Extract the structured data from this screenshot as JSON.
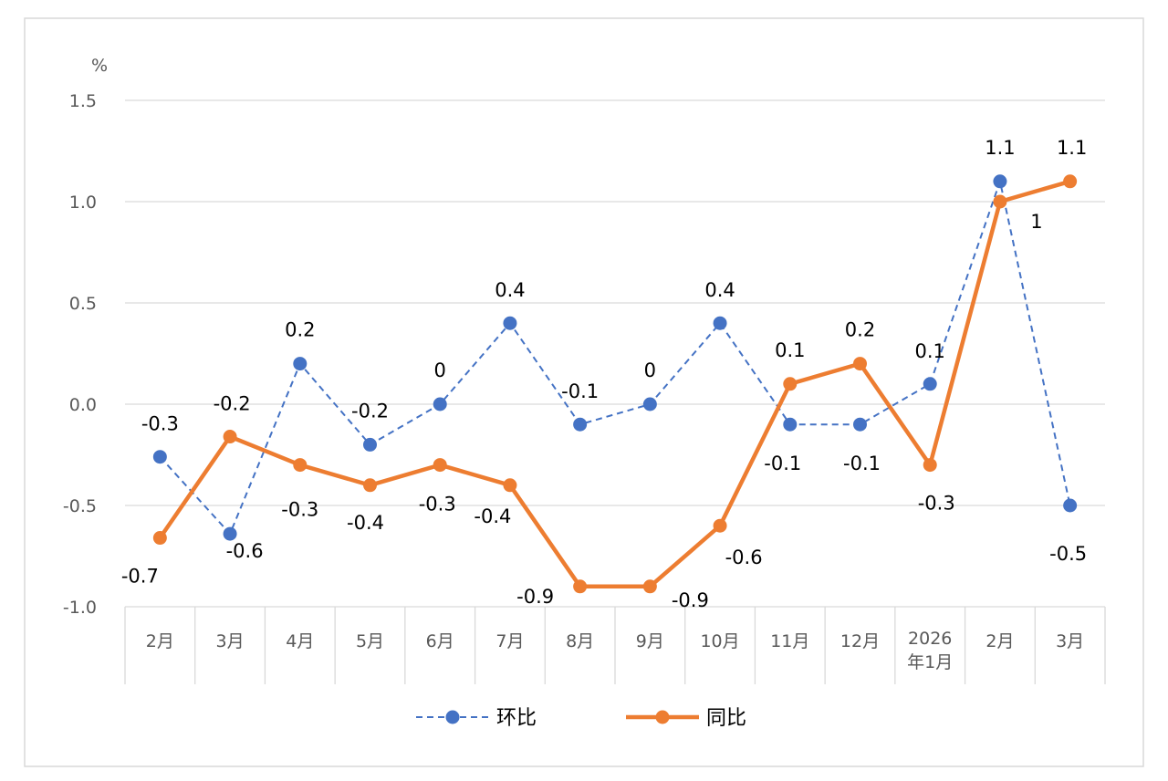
{
  "chart_data": {
    "type": "line",
    "title": "",
    "ylabel": "%",
    "xlabel": "",
    "ylim": [
      -1.0,
      1.5
    ],
    "yticks": [
      "1.5",
      "1.0",
      "0.5",
      "0.0",
      "-0.5",
      "-1.0"
    ],
    "ytick_values": [
      1.5,
      1.0,
      0.5,
      0.0,
      -0.5,
      -1.0
    ],
    "grid": true,
    "legend_position": "bottom",
    "categories": [
      [
        "2月"
      ],
      [
        "3月"
      ],
      [
        "4月"
      ],
      [
        "5月"
      ],
      [
        "6月"
      ],
      [
        "7月"
      ],
      [
        "8月"
      ],
      [
        "9月"
      ],
      [
        "10月"
      ],
      [
        "11月"
      ],
      [
        "12月"
      ],
      [
        "2026",
        "年1月"
      ],
      [
        "2月"
      ],
      [
        "3月"
      ]
    ],
    "series": [
      {
        "name": "环比",
        "color": "#4472C4",
        "style": "dashed",
        "values": [
          -0.26,
          -0.64,
          0.2,
          -0.2,
          0,
          0.4,
          -0.1,
          0,
          0.4,
          -0.1,
          -0.1,
          0.1,
          1.1,
          -0.5
        ],
        "labels": [
          "-0.3",
          "-0.6",
          "0.2",
          "-0.2",
          "0",
          "0.4",
          "-0.1",
          "0",
          "0.4",
          "-0.1",
          "-0.1",
          "0.1",
          "1.1",
          "-0.5"
        ]
      },
      {
        "name": "同比",
        "color": "#ED7D31",
        "style": "solid",
        "values": [
          -0.66,
          -0.16,
          -0.3,
          -0.4,
          -0.3,
          -0.4,
          -0.9,
          -0.9,
          -0.6,
          0.1,
          0.2,
          -0.3,
          1.0,
          1.1
        ],
        "labels": [
          "-0.7",
          "-0.2",
          "-0.3",
          "-0.4",
          "-0.3",
          "-0.4",
          "-0.9",
          "-0.9",
          "-0.6",
          "0.1",
          "0.2",
          "-0.3",
          "1",
          "1.1"
        ]
      }
    ]
  }
}
